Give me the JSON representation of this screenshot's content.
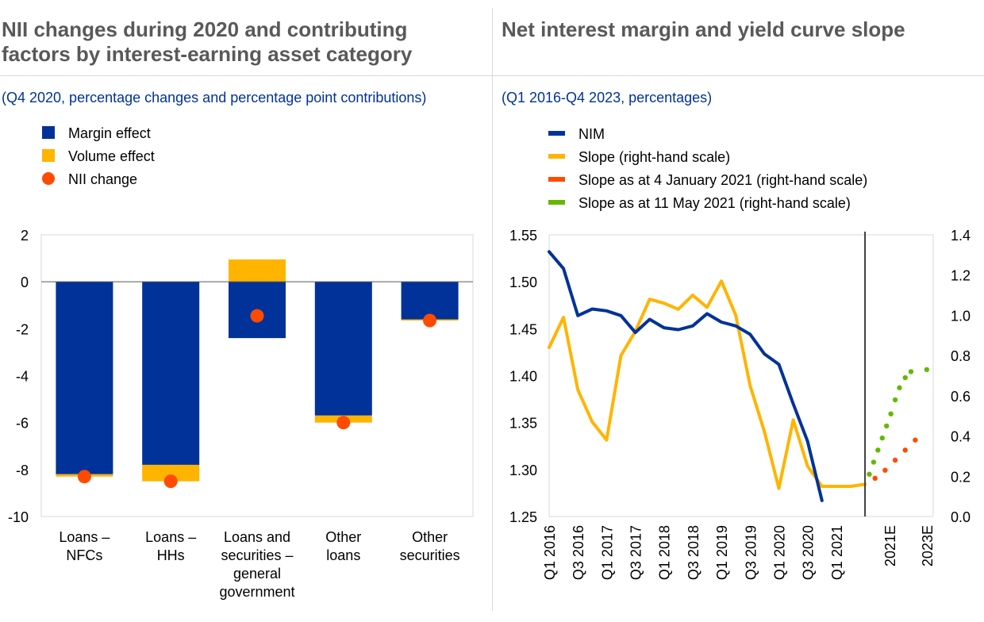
{
  "left": {
    "title_line1": "NII changes during 2020 and contributing",
    "title_line2": "factors by interest-earning asset category",
    "subtitle": "(Q4 2020, percentage changes and percentage point contributions)"
  },
  "right": {
    "title": "Net interest margin and yield curve slope",
    "subtitle": "(Q1 2016-Q4 2023, percentages)"
  },
  "colors": {
    "margin": "#003299",
    "volume": "#FFB400",
    "nii": "#FF4B00",
    "nim": "#003299",
    "slope": "#FFB400",
    "slope_jan": "#FF4B00",
    "slope_may": "#65B800"
  },
  "chart_data": [
    {
      "type": "bar",
      "stacked": true,
      "categories": [
        [
          "Loans –",
          "NFCs"
        ],
        [
          "Loans –",
          "HHs"
        ],
        [
          "Loans and",
          "securities –",
          "general",
          "government"
        ],
        [
          "Other",
          "loans"
        ],
        [
          "Other",
          "securities"
        ]
      ],
      "series": [
        {
          "name": "Margin effect",
          "kind": "bar",
          "values": [
            -8.2,
            -7.8,
            -2.4,
            -5.7,
            -1.6
          ]
        },
        {
          "name": "Volume effect",
          "kind": "bar",
          "values": [
            -0.1,
            -0.7,
            0.95,
            -0.3,
            -0.05
          ]
        },
        {
          "name": "NII change",
          "kind": "point",
          "values": [
            -8.3,
            -8.5,
            -1.45,
            -6.0,
            -1.65
          ]
        }
      ],
      "ylim": [
        -10,
        2
      ],
      "yticks": [
        2,
        0,
        -2,
        -4,
        -6,
        -8,
        -10
      ],
      "ytick_labels": [
        "2",
        "0",
        "-2",
        "-4",
        "-6",
        "-8",
        "-10"
      ],
      "legend_position": "top-left"
    },
    {
      "type": "line",
      "x_labels": [
        "Q1 2016",
        "Q3 2016",
        "Q1 2017",
        "Q3 2017",
        "Q1 2018",
        "Q3 2018",
        "Q1 2019",
        "Q3 2019",
        "Q1 2020",
        "Q3 2020",
        "Q1 2021",
        "2021E",
        "2023E"
      ],
      "series": [
        {
          "name": "NIM",
          "axis": "left",
          "style": "solid",
          "points": [
            [
              0,
              1.532
            ],
            [
              1,
              1.514
            ],
            [
              2,
              1.464
            ],
            [
              3,
              1.471
            ],
            [
              4,
              1.469
            ],
            [
              5,
              1.464
            ],
            [
              6,
              1.446
            ],
            [
              7,
              1.46
            ],
            [
              8,
              1.451
            ],
            [
              9,
              1.449
            ],
            [
              10,
              1.453
            ],
            [
              11,
              1.466
            ],
            [
              12,
              1.457
            ],
            [
              13,
              1.453
            ],
            [
              14,
              1.444
            ],
            [
              15,
              1.423
            ],
            [
              16,
              1.412
            ],
            [
              17,
              1.37
            ],
            [
              18,
              1.33
            ],
            [
              19,
              1.267
            ]
          ]
        },
        {
          "name": "Slope (right-hand scale)",
          "axis": "right",
          "style": "solid",
          "points": [
            [
              0,
              0.84
            ],
            [
              1,
              0.99
            ],
            [
              2,
              0.63
            ],
            [
              3,
              0.47
            ],
            [
              4,
              0.38
            ],
            [
              5,
              0.8
            ],
            [
              6,
              0.92
            ],
            [
              7,
              1.08
            ],
            [
              8,
              1.06
            ],
            [
              9,
              1.03
            ],
            [
              10,
              1.1
            ],
            [
              11,
              1.04
            ],
            [
              12,
              1.17
            ],
            [
              13,
              1.0
            ],
            [
              14,
              0.65
            ],
            [
              15,
              0.42
            ],
            [
              16,
              0.14
            ],
            [
              17,
              0.48
            ],
            [
              18,
              0.25
            ],
            [
              19,
              0.15
            ],
            [
              20,
              0.15
            ],
            [
              21,
              0.15
            ],
            [
              22,
              0.16
            ]
          ]
        },
        {
          "name": "Slope as at 4 January 2021 (right-hand scale)",
          "axis": "right",
          "style": "dotted",
          "points": [
            [
              22,
              0.16
            ],
            [
              22.7,
              0.19
            ],
            [
              23.4,
              0.23
            ],
            [
              24.1,
              0.28
            ],
            [
              24.8,
              0.33
            ],
            [
              25.5,
              0.38
            ]
          ]
        },
        {
          "name": "Slope as at 11 May 2021 (right-hand scale)",
          "axis": "right",
          "style": "dotted",
          "points": [
            [
              22,
              0.16
            ],
            [
              22.3,
              0.21
            ],
            [
              22.6,
              0.27
            ],
            [
              22.9,
              0.33
            ],
            [
              23.2,
              0.39
            ],
            [
              23.5,
              0.45
            ],
            [
              23.8,
              0.51
            ],
            [
              24.1,
              0.58
            ],
            [
              24.4,
              0.64
            ],
            [
              24.8,
              0.69
            ],
            [
              25.2,
              0.72
            ],
            [
              26.3,
              0.73
            ]
          ]
        }
      ],
      "ylim_left": [
        1.25,
        1.55
      ],
      "yticks_left": [
        "1.25",
        "1.30",
        "1.35",
        "1.40",
        "1.45",
        "1.50",
        "1.55"
      ],
      "ylim_right": [
        0.0,
        1.4
      ],
      "yticks_right": [
        "0.0",
        "0.2",
        "0.4",
        "0.6",
        "0.8",
        "1.0",
        "1.2",
        "1.4"
      ],
      "vertical_line_at": 22,
      "legend_position": "top-left"
    }
  ]
}
